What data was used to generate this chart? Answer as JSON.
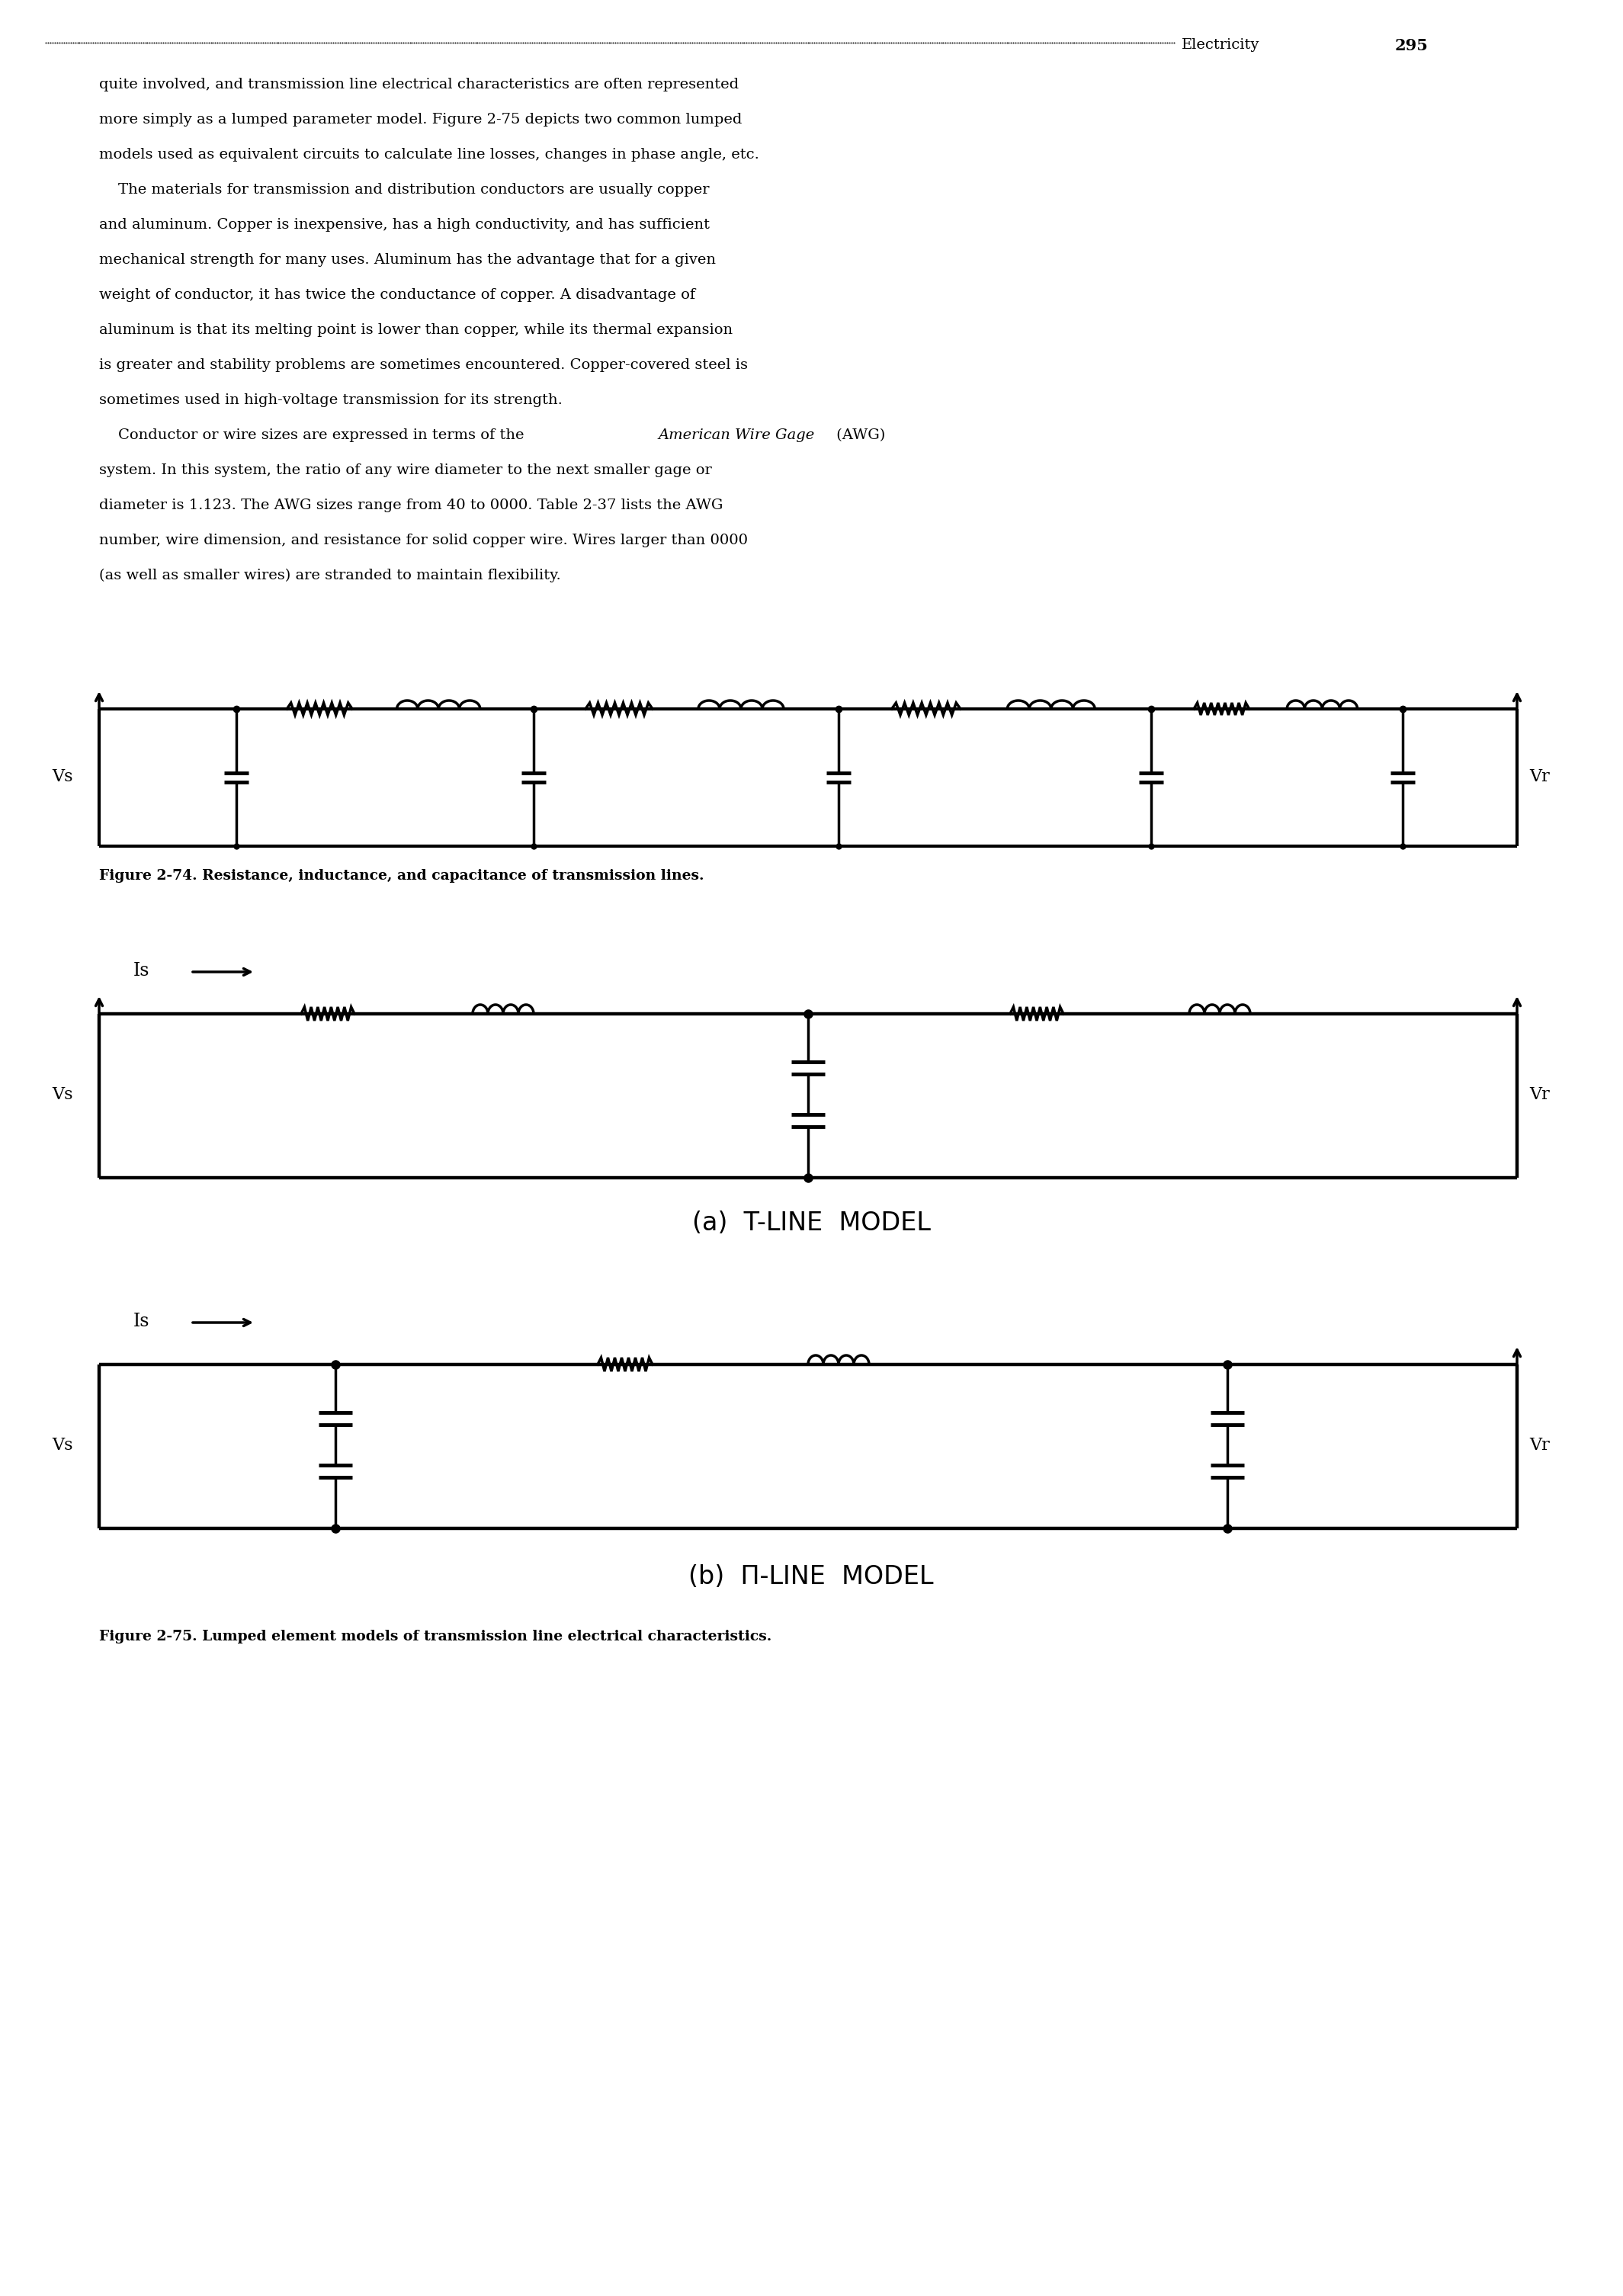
{
  "body_text": [
    "quite involved, and transmission line electrical characteristics are often represented",
    "more simply as a lumped parameter model. Figure 2-75 depicts two common lumped",
    "models used as equivalent circuits to calculate line losses, changes in phase angle, etc.",
    "    The materials for transmission and distribution conductors are usually copper",
    "and aluminum. Copper is inexpensive, has a high conductivity, and has sufficient",
    "mechanical strength for many uses. Aluminum has the advantage that for a given",
    "weight of conductor, it has twice the conductance of copper. A disadvantage of",
    "aluminum is that its melting point is lower than copper, while its thermal expansion",
    "is greater and stability problems are sometimes encountered. Copper-covered steel is",
    "sometimes used in high-voltage transmission for its strength.",
    "    Conductor or wire sizes are expressed in terms of the American Wire Gage (AWG)",
    "system. In this system, the ratio of any wire diameter to the next smaller gage or",
    "diameter is 1.123. The AWG sizes range from 40 to 0000. Table 2-37 lists the AWG",
    "number, wire dimension, and resistance for solid copper wire. Wires larger than 0000",
    "(as well as smaller wires) are stranded to maintain flexibility."
  ],
  "italic_phrase": "American Wire Gage",
  "fig74_caption": "Figure 2-74. Resistance, inductance, and capacitance of transmission lines.",
  "fig75a_label": "(a)  T-LINE  MODEL",
  "fig75b_label": "(b)  Π-LINE  MODEL",
  "fig75_caption": "Figure 2-75. Lumped element models of transmission line electrical characteristics.",
  "bg_color": "#ffffff"
}
